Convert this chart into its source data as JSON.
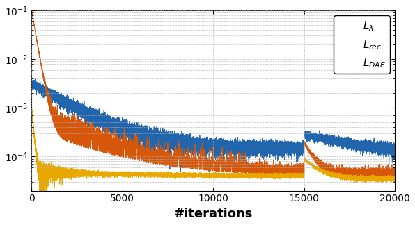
{
  "title": "",
  "xlabel": "#iterations",
  "ylabel": "",
  "xlim": [
    0,
    20000
  ],
  "ylim_log": [
    -4.7,
    -1.0
  ],
  "x_ticks": [
    0,
    5000,
    10000,
    15000,
    20000
  ],
  "colors": {
    "blue": "#2166ac",
    "orange": "#d6570a",
    "yellow": "#e8a800"
  },
  "legend_labels": [
    "$L_{\\lambda}$",
    "$L_{rec}$",
    "$L_{DAE}$"
  ],
  "background_color": "#ffffff",
  "grid_color": "#b0b0b0",
  "line_width": 0.7,
  "seed": 42
}
